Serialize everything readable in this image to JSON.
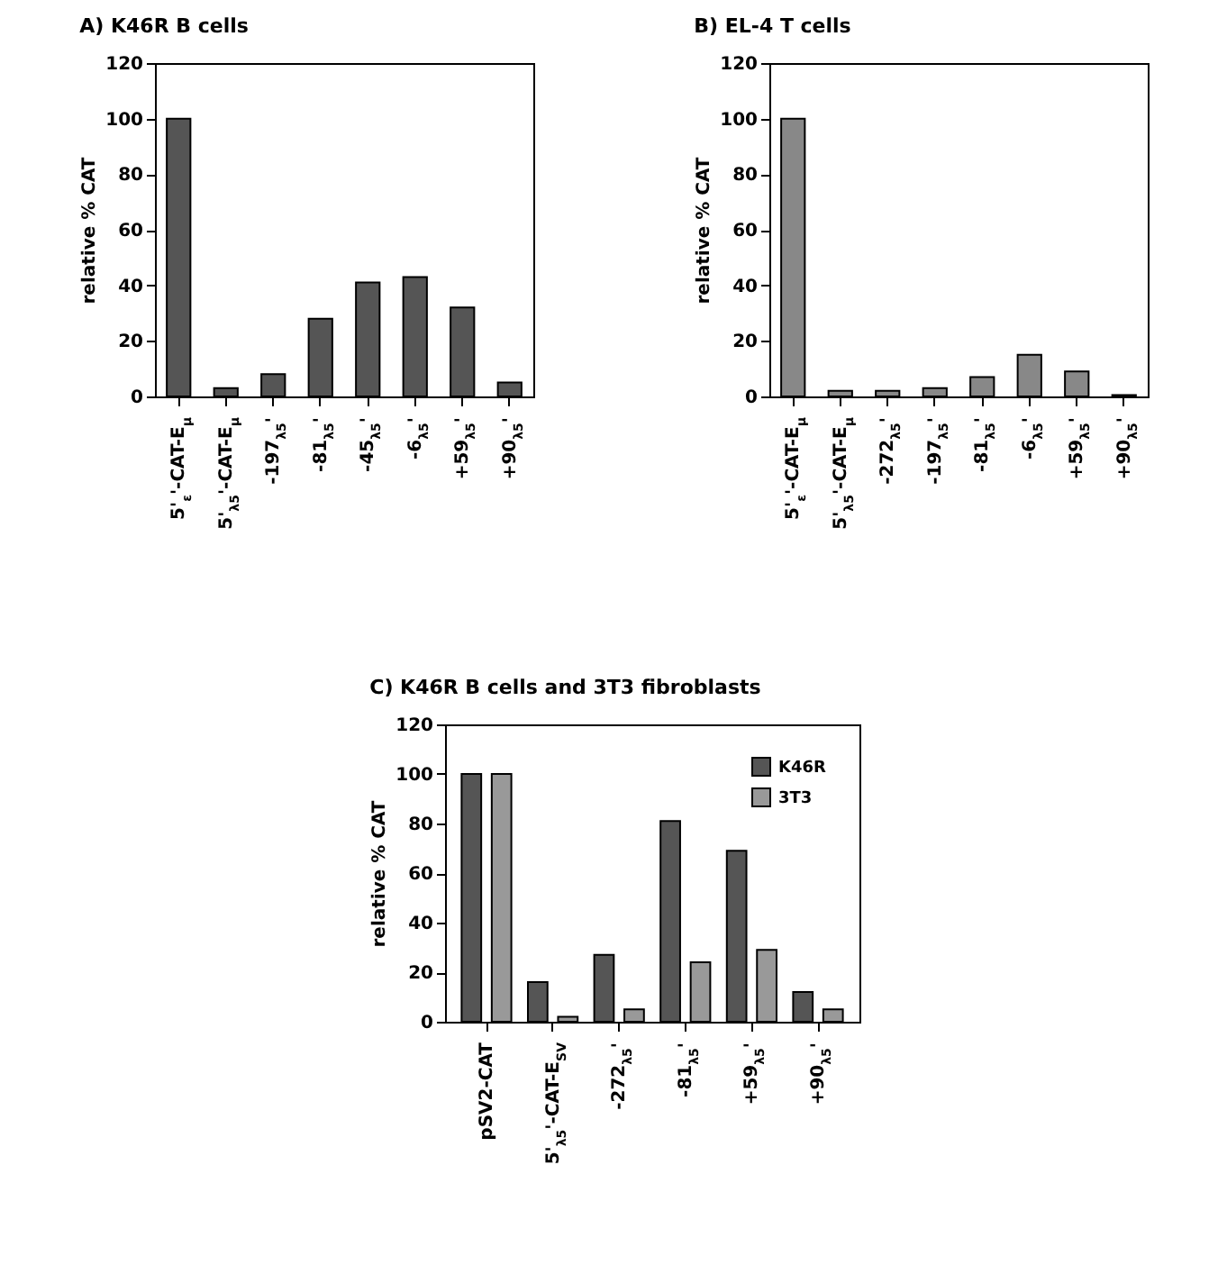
{
  "chart_data": [
    {
      "type": "bar",
      "title": "A) K46R B cells",
      "ylabel": "relative % CAT",
      "categories": [
        "5'$_{ε}$'-CAT-E$_{μ}$",
        "5'$_{λ5}$'-CAT-E$_{μ}$",
        "-197$_{λ5}$'",
        "-81$_{λ5}$'",
        "-45$_{λ5}$'",
        "-6$_{λ5}$'",
        "+59$_{λ5}$'",
        "+90$_{λ5}$'"
      ],
      "values": [
        100,
        3,
        8,
        28,
        41,
        43,
        32,
        5
      ],
      "color": "#555555",
      "ylim": [
        0,
        120
      ],
      "yticks": [
        0,
        20,
        40,
        60,
        80,
        100,
        120
      ],
      "grid": false,
      "legend": false
    },
    {
      "type": "bar",
      "title": "B) EL-4 T cells",
      "ylabel": "relative % CAT",
      "categories": [
        "5'$_{ε}$'-CAT-E$_{μ}$",
        "5'$_{λ5}$'-CAT-E$_{μ}$",
        "-272$_{λ5}$'",
        "-197$_{λ5}$'",
        "-81$_{λ5}$'",
        "-6$_{λ5}$'",
        "+59$_{λ5}$'",
        "+90$_{λ5}$'"
      ],
      "values": [
        100,
        2,
        2,
        3,
        7,
        15,
        9,
        0.5
      ],
      "color": "#888888",
      "ylim": [
        0,
        120
      ],
      "yticks": [
        0,
        20,
        40,
        60,
        80,
        100,
        120
      ],
      "grid": false,
      "legend": false
    },
    {
      "type": "bar",
      "title": "C) K46R B cells and 3T3 fibroblasts",
      "ylabel": "relative % CAT",
      "categories": [
        "pSV2-CAT",
        "5'$_{λ5}$'-CAT-E$_{SV}$",
        "-272$_{λ5}$'",
        "-81$_{λ5}$'",
        "+59$_{λ5}$'",
        "+90$_{λ5}$'"
      ],
      "series": [
        {
          "name": "K46R",
          "color": "#555555",
          "values": [
            100,
            16,
            27,
            81,
            69,
            12
          ]
        },
        {
          "name": "3T3",
          "color": "#999999",
          "values": [
            100,
            2,
            5,
            24,
            29,
            5
          ]
        }
      ],
      "ylim": [
        0,
        120
      ],
      "yticks": [
        0,
        20,
        40,
        60,
        80,
        100,
        120
      ],
      "grid": false,
      "legend": "top right"
    }
  ]
}
